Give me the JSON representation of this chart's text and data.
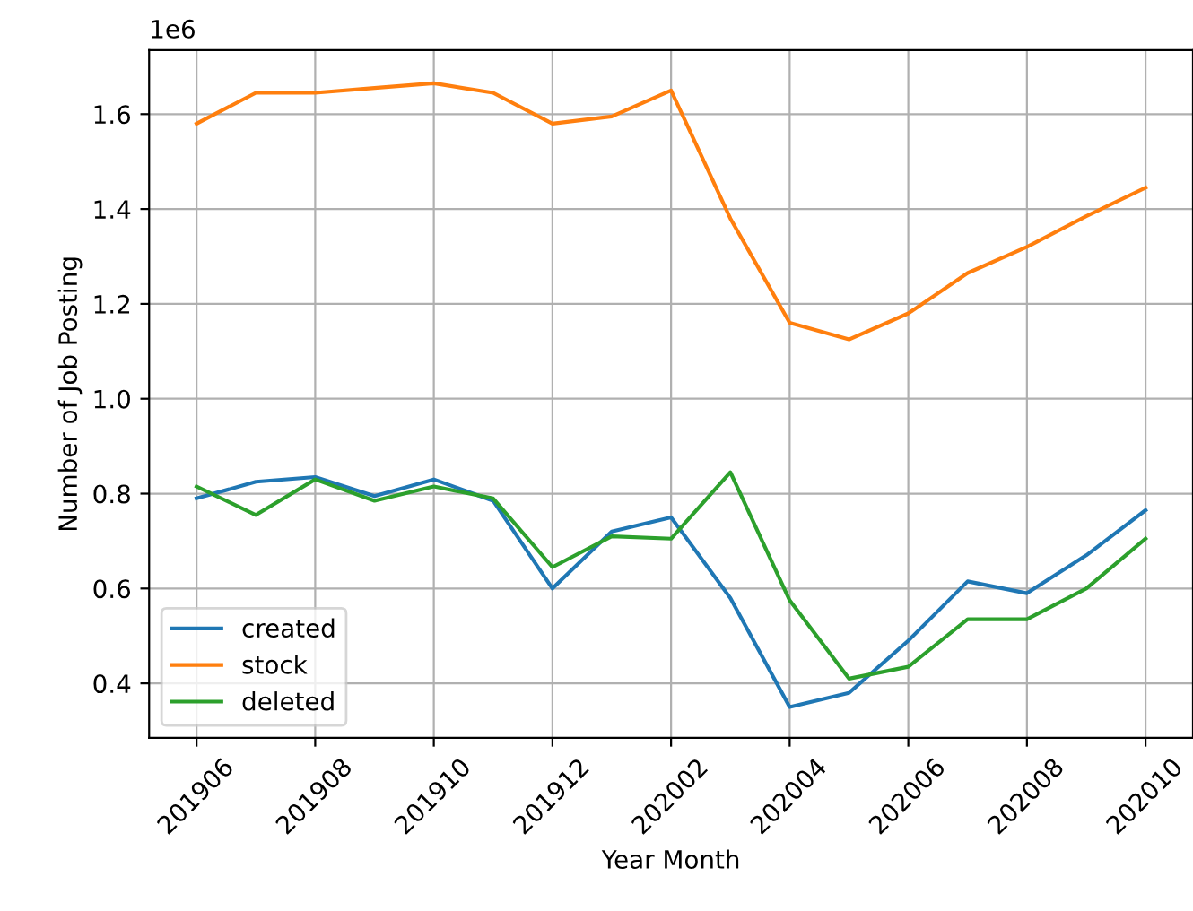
{
  "chart_data": {
    "type": "line",
    "xlabel": "Year Month",
    "ylabel": "Number of Job Posting",
    "categories": [
      "201906",
      null,
      "201908",
      null,
      "201910",
      null,
      "201912",
      null,
      "202002",
      null,
      "202004",
      null,
      "202006",
      null,
      "202008",
      null,
      "202010"
    ],
    "series": [
      {
        "name": "created",
        "color": "#1f77b4",
        "values": [
          0.79,
          0.825,
          0.835,
          0.795,
          0.83,
          0.785,
          0.6,
          0.72,
          0.75,
          0.58,
          0.35,
          0.38,
          0.49,
          0.615,
          0.59,
          0.67,
          0.765
        ]
      },
      {
        "name": "stock",
        "color": "#ff7f0e",
        "values": [
          1.58,
          1.645,
          1.645,
          1.655,
          1.665,
          1.645,
          1.58,
          1.595,
          1.65,
          1.38,
          1.16,
          1.125,
          1.18,
          1.265,
          1.32,
          1.385,
          1.445
        ]
      },
      {
        "name": "deleted",
        "color": "#2ca02c",
        "values": [
          0.815,
          0.755,
          0.83,
          0.785,
          0.815,
          0.79,
          0.645,
          0.71,
          0.705,
          0.845,
          0.575,
          0.41,
          0.435,
          0.535,
          0.535,
          0.6,
          0.705
        ]
      }
    ],
    "ylim": [
      0.285,
      1.735
    ],
    "yticks": [
      0.4,
      0.6,
      0.8,
      {
        "value": 1,
        "label": "1.0"
      },
      1.2,
      1.4,
      1.6
    ],
    "annotations": [
      "1e6"
    ],
    "grid": true,
    "legend": "bottom left",
    "line_style": "solid",
    "marker": "none"
  }
}
